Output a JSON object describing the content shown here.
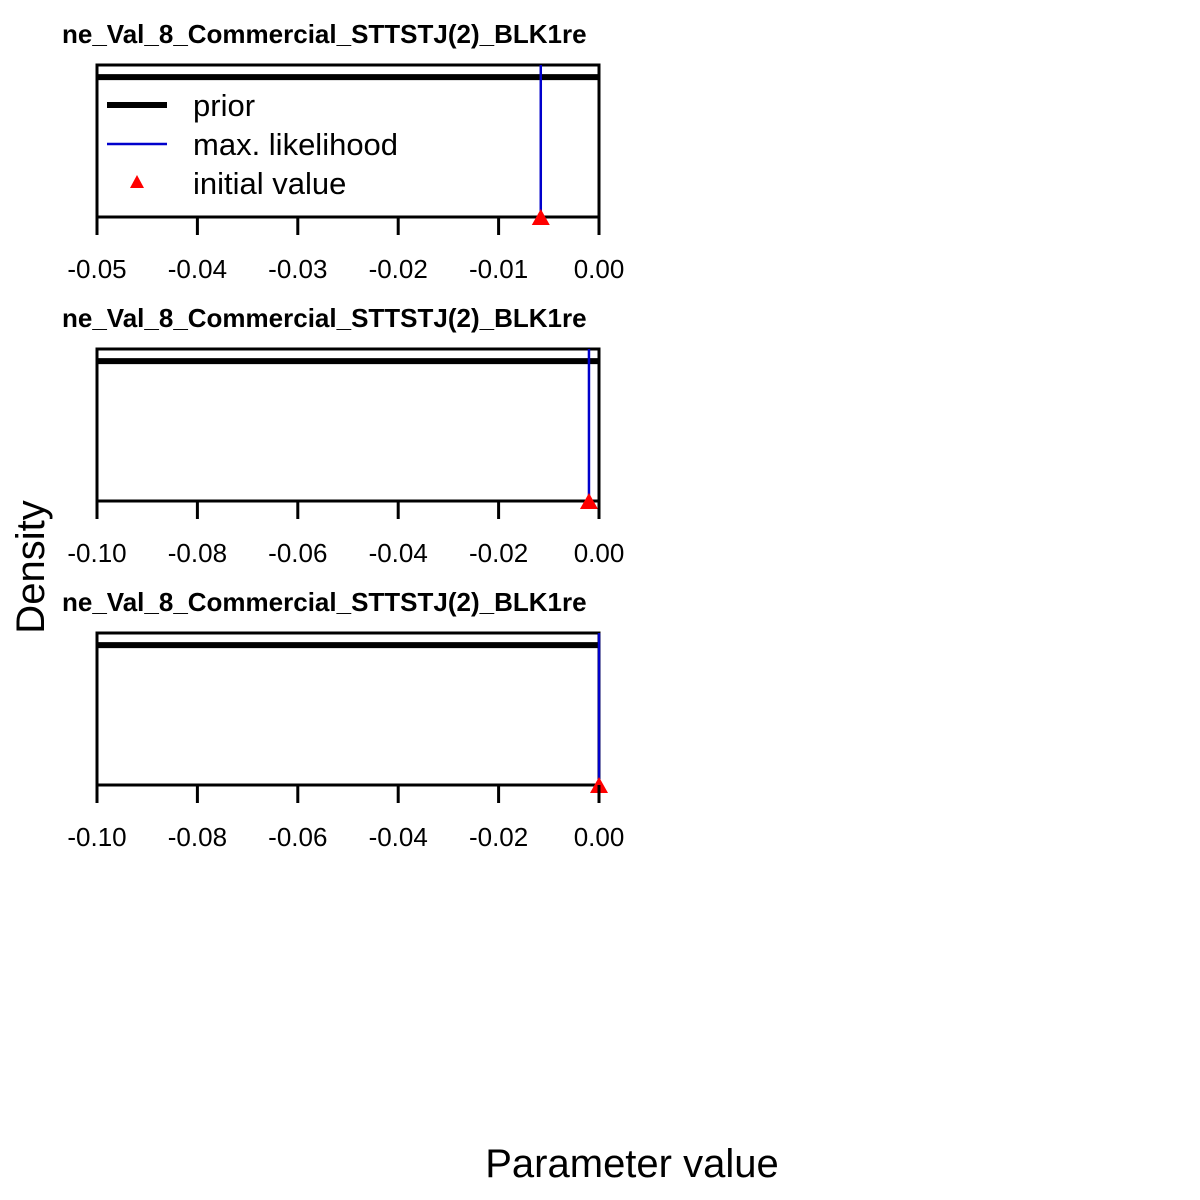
{
  "page": {
    "background": "#ffffff"
  },
  "axis_titles": {
    "xlabel": "Parameter value",
    "ylabel": "Density"
  },
  "colors": {
    "prior": "#000000",
    "max_likelihood": "#0000cc",
    "initial_value": "#ff0000",
    "axis": "#000000"
  },
  "legend": {
    "placement": "top-left of first panel",
    "items": [
      {
        "label": "prior",
        "symbol": "thick-line",
        "color": "#000000"
      },
      {
        "label": "max. likelihood",
        "symbol": "thin-line",
        "color": "#0000cc"
      },
      {
        "label": "initial value",
        "symbol": "triangle-marker",
        "color": "#ff0000"
      }
    ]
  },
  "chart_data": [
    {
      "type": "line",
      "title": "ne_Val_8_Commercial_STTSTJ(2)_BLK1re",
      "xlim": [
        -0.05,
        0.0
      ],
      "xticks": [
        -0.05,
        -0.04,
        -0.03,
        -0.02,
        -0.01,
        0.0
      ],
      "xtick_labels": [
        "-0.05",
        "-0.04",
        "-0.03",
        "-0.02",
        "-0.01",
        "0.00"
      ],
      "prior_level": 0.92,
      "max_likelihood": -0.0058,
      "initial_value": -0.0058,
      "show_legend": true
    },
    {
      "type": "line",
      "title": "ne_Val_8_Commercial_STTSTJ(2)_BLK1re",
      "xlim": [
        -0.1,
        0.0
      ],
      "xticks": [
        -0.1,
        -0.08,
        -0.06,
        -0.04,
        -0.02,
        0.0
      ],
      "xtick_labels": [
        "-0.10",
        "-0.08",
        "-0.06",
        "-0.04",
        "-0.02",
        "0.00"
      ],
      "prior_level": 0.92,
      "max_likelihood": -0.002,
      "initial_value": -0.002,
      "show_legend": false
    },
    {
      "type": "line",
      "title": "ne_Val_8_Commercial_STTSTJ(2)_BLK1re",
      "xlim": [
        -0.1,
        0.0
      ],
      "xticks": [
        -0.1,
        -0.08,
        -0.06,
        -0.04,
        -0.02,
        0.0
      ],
      "xtick_labels": [
        "-0.10",
        "-0.08",
        "-0.06",
        "-0.04",
        "-0.02",
        "0.00"
      ],
      "prior_level": 0.92,
      "max_likelihood": 0.0,
      "initial_value": 0.0,
      "show_legend": false
    }
  ]
}
